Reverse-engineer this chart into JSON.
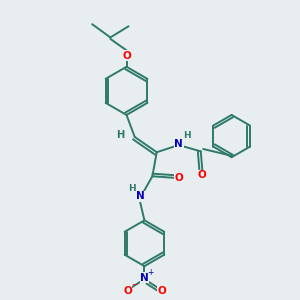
{
  "bg_color": "#e8edf0",
  "bond_color": "#2d7a6b",
  "atom_colors": {
    "O": "#ff0000",
    "N": "#0000bb",
    "H": "#2d7a6b",
    "default": "#2d7a6b"
  },
  "figsize": [
    3.0,
    3.0
  ],
  "dpi": 100
}
